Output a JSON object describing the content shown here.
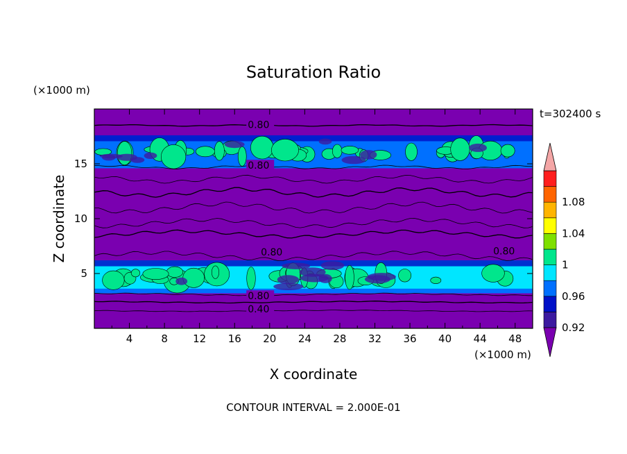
{
  "chart_data": {
    "type": "contour",
    "title": "Saturation Ratio",
    "xlabel": "X coordinate",
    "ylabel": "Z coordinate",
    "x_unit": "(×1000 m)",
    "y_unit": "(×1000 m)",
    "time_label": "t=302400 s",
    "footer": "CONTOUR INTERVAL = 2.000E-01",
    "xlim": [
      0,
      50
    ],
    "ylim": [
      0,
      20
    ],
    "x_ticks": [
      4,
      8,
      12,
      16,
      20,
      24,
      28,
      32,
      36,
      40,
      44,
      48
    ],
    "y_ticks": [
      5,
      10,
      15
    ],
    "colorbar": {
      "levels": [
        0.92,
        0.94,
        0.96,
        0.98,
        1.0,
        1.02,
        1.04,
        1.06,
        1.08,
        1.1
      ],
      "tick_labels": [
        "0.92",
        "0.96",
        "1",
        "1.04",
        "1.08"
      ],
      "colors": [
        "#7a00b0",
        "#3c1aa0",
        "#0010c8",
        "#0070ff",
        "#00e6ff",
        "#00e68c",
        "#7fe000",
        "#ffff00",
        "#ffb400",
        "#ff6400",
        "#ff1e1e",
        "#f4a6a6"
      ],
      "extend": "both"
    },
    "layers": [
      {
        "z_bottom": 0.0,
        "z_top": 1.6,
        "value": 0.4
      },
      {
        "z_bottom": 1.6,
        "z_top": 3.0,
        "value": 0.6
      },
      {
        "z_bottom": 3.2,
        "z_top": 6.2,
        "value": 0.99
      },
      {
        "z_bottom": 6.2,
        "z_top": 14.6,
        "value": 0.8
      },
      {
        "z_bottom": 14.6,
        "z_top": 17.6,
        "value": 0.97
      },
      {
        "z_bottom": 17.6,
        "z_top": 20.0,
        "value": 0.8
      }
    ],
    "contour_labels": [
      {
        "text": "0.80",
        "x": 17.5,
        "z": 18.5
      },
      {
        "text": "0.80",
        "x": 17.5,
        "z": 14.8
      },
      {
        "text": "0.80",
        "x": 19.0,
        "z": 6.9
      },
      {
        "text": "0.80",
        "x": 45.5,
        "z": 7.0
      },
      {
        "text": "0.80",
        "x": 17.5,
        "z": 2.9
      },
      {
        "text": "0.40",
        "x": 17.5,
        "z": 1.7
      }
    ]
  }
}
